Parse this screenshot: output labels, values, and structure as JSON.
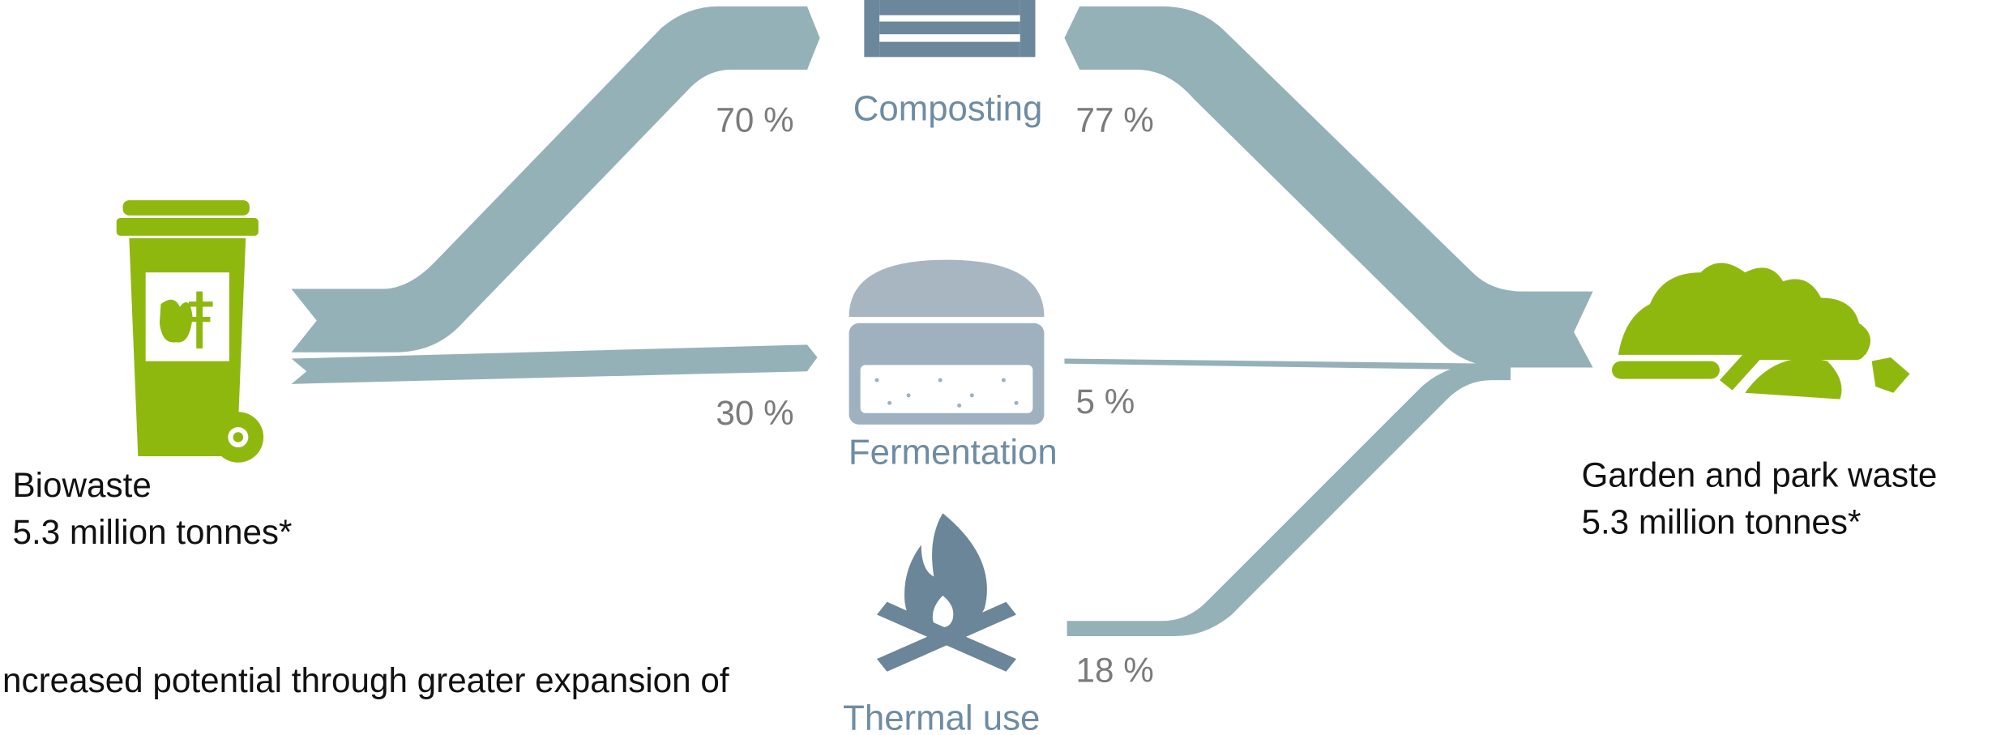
{
  "sources": [
    {
      "label": "Biowaste",
      "amount": "5.3 million tonnes*"
    },
    {
      "label": "Garden and park waste",
      "amount": "5.3 million tonnes*"
    }
  ],
  "processes": [
    {
      "label": "Composting"
    },
    {
      "label": "Fermentation"
    },
    {
      "label": "Thermal use"
    }
  ],
  "flows": [
    {
      "label": "70 %"
    },
    {
      "label": "30 %"
    },
    {
      "label": "77 %"
    },
    {
      "label": "5 %"
    },
    {
      "label": "18 %"
    }
  ],
  "footnote": "ncreased potential through greater expansion of"
}
